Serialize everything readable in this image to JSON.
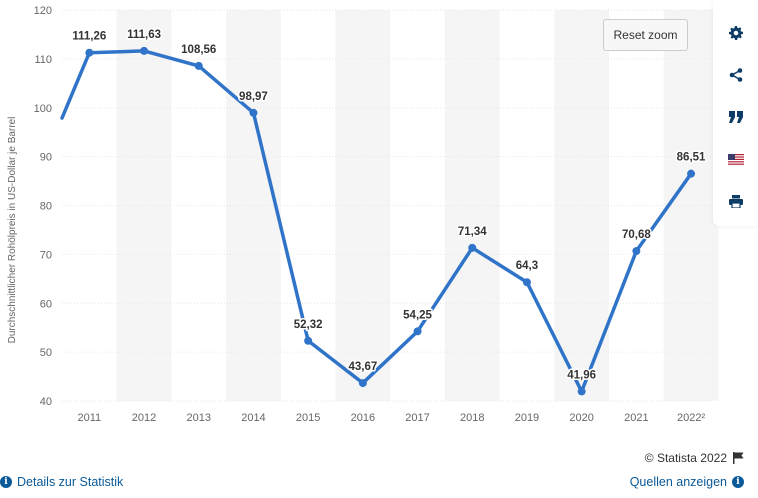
{
  "chart_data": {
    "type": "line",
    "categories": [
      "2011",
      "2012",
      "2013",
      "2014",
      "2015",
      "2016",
      "2017",
      "2018",
      "2019",
      "2020",
      "2021",
      "2022²"
    ],
    "values": [
      111.26,
      111.63,
      108.56,
      98.97,
      52.32,
      43.67,
      54.25,
      71.34,
      64.3,
      41.96,
      70.68,
      86.51
    ],
    "data_labels": [
      "111,26",
      "111,63",
      "108,56",
      "98,97",
      "52,32",
      "43,67",
      "54,25",
      "71,34",
      "64,3",
      "41,96",
      "70,68",
      "86,51"
    ],
    "ylabel": "Durchschnittlicher Rohölpreis in US-Dollar je Barrel",
    "xlabel": "",
    "ylim": [
      40,
      120
    ],
    "yticks": [
      40,
      50,
      60,
      70,
      80,
      90,
      100,
      110,
      120
    ],
    "grid": true,
    "series_color": "#2f74c8",
    "band_color": "#f5f5f5"
  },
  "ui": {
    "reset_zoom": "Reset zoom",
    "copyright": "© Statista 2022",
    "details_link": "Details zur Statistik",
    "sources_link": "Quellen anzeigen"
  },
  "toolbar": {
    "icons": [
      "gear-icon",
      "share-icon",
      "quote-icon",
      "us-flag-icon",
      "print-icon"
    ]
  }
}
